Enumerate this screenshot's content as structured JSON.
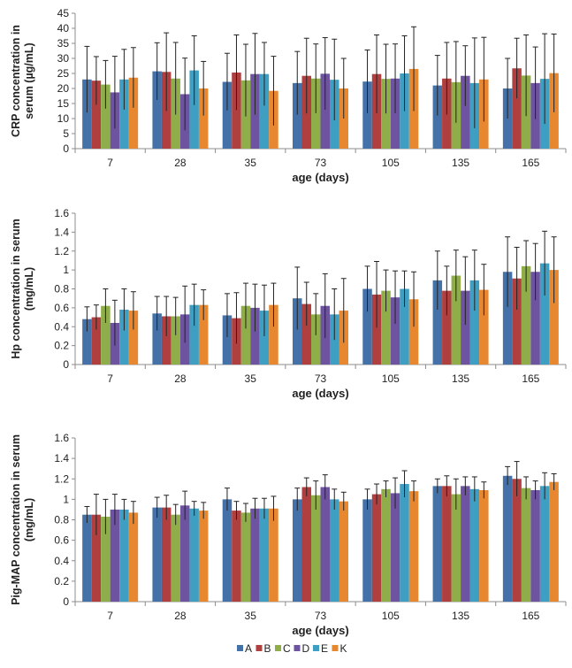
{
  "colors": {
    "A": "#4472a8",
    "B": "#b0403f",
    "C": "#8fae4a",
    "D": "#6e54a0",
    "E": "#3f9fc2",
    "K": "#e7872f",
    "axis": "#8c8c8c",
    "error": "#222222"
  },
  "legend": [
    "A",
    "B",
    "C",
    "D",
    "E",
    "K"
  ],
  "chart_data": [
    {
      "type": "bar",
      "title": "",
      "xlabel": "age (days)",
      "ylabel_lines": [
        "CRP concentration in",
        "serum (µg/mL)"
      ],
      "categories": [
        "7",
        "28",
        "35",
        "73",
        "105",
        "135",
        "165"
      ],
      "ylim": [
        0,
        45
      ],
      "ytick_step": 5,
      "ytick_labels": [
        "0",
        "5",
        "10",
        "15",
        "20",
        "25",
        "30",
        "35",
        "40",
        "45"
      ],
      "series": [
        {
          "name": "A",
          "values": [
            23.0,
            25.7,
            22.2,
            21.8,
            22.3,
            21.0,
            20.0
          ],
          "errors": [
            11.0,
            9.5,
            9.5,
            10.5,
            10.5,
            10.0,
            10.0
          ]
        },
        {
          "name": "B",
          "values": [
            22.6,
            25.5,
            25.3,
            24.2,
            24.8,
            23.3,
            26.7
          ],
          "errors": [
            8.0,
            13.0,
            12.5,
            12.5,
            13.0,
            12.0,
            10.0
          ]
        },
        {
          "name": "C",
          "values": [
            21.3,
            23.3,
            22.7,
            23.3,
            23.2,
            22.1,
            24.3
          ],
          "errors": [
            8.0,
            12.0,
            12.0,
            11.5,
            11.5,
            13.5,
            13.5
          ]
        },
        {
          "name": "D",
          "values": [
            18.7,
            18.1,
            24.8,
            24.9,
            23.3,
            24.2,
            21.8
          ],
          "errors": [
            12.0,
            12.0,
            13.5,
            12.0,
            11.5,
            10.0,
            12.0
          ]
        },
        {
          "name": "E",
          "values": [
            23.0,
            26.0,
            24.8,
            22.9,
            25.0,
            21.8,
            23.2
          ],
          "errors": [
            10.0,
            11.5,
            10.5,
            13.5,
            12.5,
            15.0,
            15.0
          ]
        },
        {
          "name": "K",
          "values": [
            23.6,
            20.0,
            19.2,
            20.0,
            26.5,
            23.0,
            25.1
          ],
          "errors": [
            10.0,
            9.0,
            11.5,
            10.0,
            14.0,
            14.0,
            13.0
          ]
        }
      ]
    },
    {
      "type": "bar",
      "title": "",
      "xlabel": "age (days)",
      "ylabel_lines": [
        "Hp concentration in serum",
        "(mg/mL)"
      ],
      "categories": [
        "7",
        "28",
        "35",
        "73",
        "105",
        "135",
        "165"
      ],
      "ylim": [
        0,
        1.6
      ],
      "ytick_step": 0.2,
      "ytick_labels": [
        "0",
        "0.2",
        "0.4",
        "0.6",
        "0.8",
        "1",
        "1.2",
        "1.4",
        "1.6"
      ],
      "series": [
        {
          "name": "A",
          "values": [
            0.48,
            0.54,
            0.52,
            0.7,
            0.8,
            0.89,
            0.98
          ],
          "errors": [
            0.13,
            0.18,
            0.23,
            0.33,
            0.24,
            0.31,
            0.37
          ]
        },
        {
          "name": "B",
          "values": [
            0.5,
            0.51,
            0.49,
            0.64,
            0.74,
            0.78,
            0.91
          ],
          "errors": [
            0.13,
            0.21,
            0.27,
            0.23,
            0.35,
            0.26,
            0.33
          ]
        },
        {
          "name": "C",
          "values": [
            0.62,
            0.51,
            0.62,
            0.53,
            0.78,
            0.94,
            1.04
          ],
          "errors": [
            0.18,
            0.2,
            0.24,
            0.22,
            0.22,
            0.27,
            0.27
          ]
        },
        {
          "name": "D",
          "values": [
            0.44,
            0.53,
            0.6,
            0.62,
            0.71,
            0.78,
            0.98
          ],
          "errors": [
            0.24,
            0.3,
            0.25,
            0.34,
            0.28,
            0.36,
            0.3
          ]
        },
        {
          "name": "E",
          "values": [
            0.58,
            0.63,
            0.57,
            0.53,
            0.8,
            0.89,
            1.07
          ],
          "errors": [
            0.22,
            0.22,
            0.27,
            0.27,
            0.19,
            0.32,
            0.34
          ]
        },
        {
          "name": "K",
          "values": [
            0.57,
            0.63,
            0.63,
            0.57,
            0.69,
            0.79,
            1.0
          ],
          "errors": [
            0.2,
            0.16,
            0.23,
            0.34,
            0.29,
            0.27,
            0.35
          ]
        }
      ]
    },
    {
      "type": "bar",
      "title": "",
      "xlabel": "age (days)",
      "ylabel_lines": [
        "Pig-MAP concentration in serum",
        "(mg/mL)"
      ],
      "categories": [
        "7",
        "28",
        "35",
        "73",
        "105",
        "135",
        "165"
      ],
      "ylim": [
        0,
        1.6
      ],
      "ytick_step": 0.2,
      "ytick_labels": [
        "0",
        "0.2",
        "0.4",
        "0.6",
        "0.8",
        "1",
        "1.2",
        "1.4",
        "1.6"
      ],
      "series": [
        {
          "name": "A",
          "values": [
            0.85,
            0.92,
            1.0,
            1.0,
            1.0,
            1.13,
            1.23
          ],
          "errors": [
            0.08,
            0.1,
            0.11,
            0.11,
            0.1,
            0.07,
            0.09
          ]
        },
        {
          "name": "B",
          "values": [
            0.85,
            0.92,
            0.89,
            1.12,
            1.05,
            1.13,
            1.2
          ],
          "errors": [
            0.2,
            0.12,
            0.09,
            0.09,
            0.1,
            0.1,
            0.17
          ]
        },
        {
          "name": "C",
          "values": [
            0.83,
            0.85,
            0.87,
            1.04,
            1.1,
            1.05,
            1.11
          ],
          "errors": [
            0.17,
            0.1,
            0.09,
            0.14,
            0.08,
            0.15,
            0.11
          ]
        },
        {
          "name": "D",
          "values": [
            0.9,
            0.94,
            0.91,
            1.12,
            1.06,
            1.13,
            1.09
          ],
          "errors": [
            0.15,
            0.14,
            0.1,
            0.12,
            0.15,
            0.09,
            0.09
          ]
        },
        {
          "name": "E",
          "values": [
            0.9,
            0.91,
            0.91,
            1.0,
            1.15,
            1.1,
            1.13
          ],
          "errors": [
            0.1,
            0.07,
            0.1,
            0.1,
            0.13,
            0.12,
            0.13
          ]
        },
        {
          "name": "K",
          "values": [
            0.87,
            0.89,
            0.91,
            0.98,
            1.08,
            1.09,
            1.17
          ],
          "errors": [
            0.11,
            0.08,
            0.12,
            0.09,
            0.1,
            0.08,
            0.08
          ]
        }
      ]
    }
  ]
}
